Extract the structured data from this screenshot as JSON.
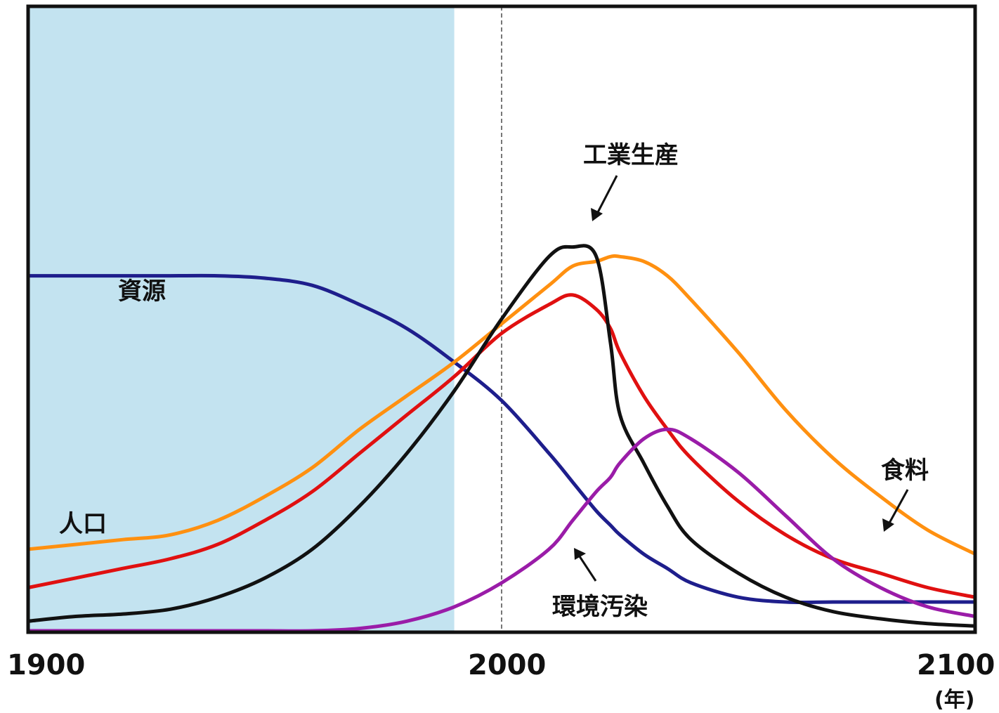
{
  "chart_data": {
    "type": "line",
    "x_unit_label": "(年)",
    "xlim": [
      1900,
      2100
    ],
    "ylim": [
      0,
      100
    ],
    "x_ticks": [
      "1900",
      "2000",
      "2100"
    ],
    "shaded_range": [
      1900,
      1990
    ],
    "reference_line_x": 2000,
    "grid": false,
    "x": [
      1900,
      1910,
      1920,
      1930,
      1940,
      1950,
      1960,
      1970,
      1980,
      1990,
      2000,
      2010,
      2015,
      2020,
      2023,
      2025,
      2030,
      2035,
      2040,
      2050,
      2060,
      2070,
      2080,
      2090,
      2100
    ],
    "series": [
      {
        "name": "資源",
        "color": "#1e1e8c",
        "values": [
          74,
          74,
          74,
          74,
          74,
          73.5,
          72,
          68,
          63,
          56,
          48,
          37,
          31,
          25,
          22,
          20,
          16,
          13,
          10,
          7,
          6,
          6,
          6,
          6,
          6
        ]
      },
      {
        "name": "人口",
        "color": "#ff9010",
        "values": [
          17,
          18,
          19,
          20,
          23,
          28,
          34,
          42,
          49,
          56,
          64,
          72,
          76,
          77,
          78,
          78,
          77,
          74,
          69,
          58,
          46,
          36,
          28,
          21,
          16
        ]
      },
      {
        "name": "食料",
        "color": "#e01010",
        "values": [
          9,
          11,
          13,
          15,
          18,
          23,
          29,
          37,
          45,
          53,
          62,
          68,
          70,
          67,
          63,
          58,
          49,
          42,
          36,
          27,
          20,
          15,
          12,
          9,
          7
        ]
      },
      {
        "name": "工業生産",
        "color": "#111111",
        "values": [
          2,
          3,
          3.5,
          4.5,
          7,
          11,
          17,
          26,
          37,
          50,
          65,
          78,
          80,
          78,
          60,
          45,
          35,
          26,
          19,
          12,
          7,
          4,
          2.5,
          1.5,
          1
        ]
      },
      {
        "name": "環境汚染",
        "color": "#9a1ca8",
        "values": [
          0,
          0,
          0,
          0,
          0,
          0,
          0,
          0.5,
          2,
          5,
          10,
          17,
          23,
          29,
          32,
          35,
          40,
          42,
          40,
          33,
          24,
          15,
          9,
          5,
          3
        ]
      }
    ],
    "annotations": [
      {
        "text": "資源",
        "series": "資源"
      },
      {
        "text": "人口",
        "series": "人口"
      },
      {
        "text": "食料",
        "series": "食料"
      },
      {
        "text": "工業生産",
        "series": "工業生産"
      },
      {
        "text": "環境汚染",
        "series": "環境汚染"
      }
    ]
  }
}
